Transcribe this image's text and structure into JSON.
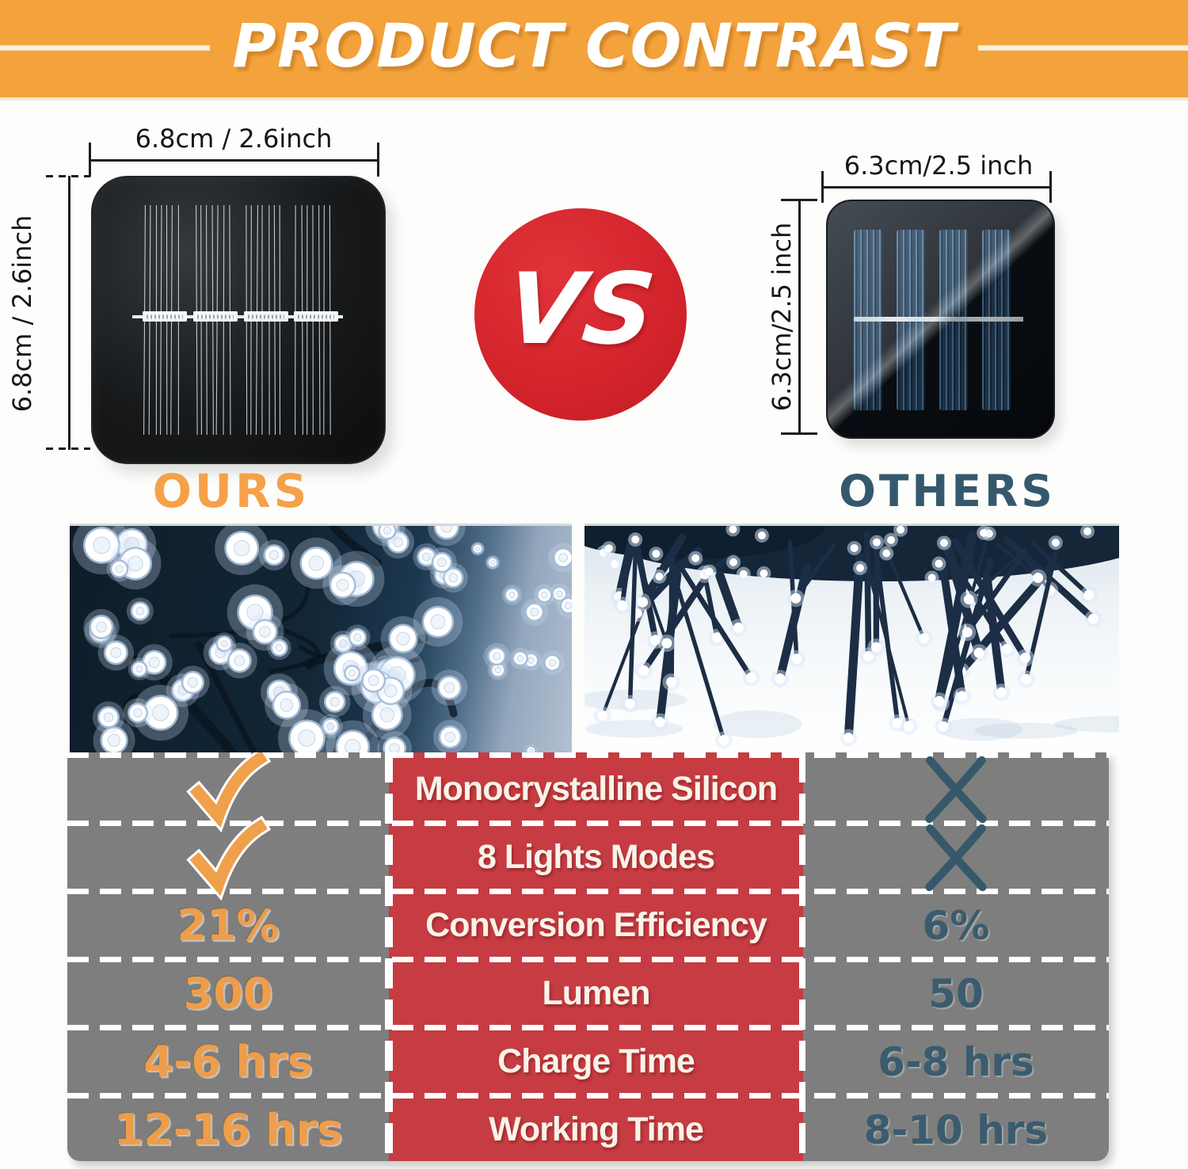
{
  "header": {
    "title": "PRODUCT CONTRAST",
    "banner_color": "#F4A23C"
  },
  "ours": {
    "name": "OURS",
    "top_dimension": "6.8cm / 2.6inch",
    "side_dimension": "6.8cm / 2.6inch",
    "label_color": "#F5A149"
  },
  "others": {
    "name": "OTHERS",
    "top_dimension": "6.3cm/2.5 inch",
    "side_dimension": "6.3cm/2.5 inch",
    "label_color": "#34596C"
  },
  "versus": {
    "label": "VS",
    "circle_color": "#D2232B"
  },
  "comparison_table": {
    "columns": [
      "ours",
      "feature",
      "others"
    ],
    "rows": [
      {
        "ours": "check",
        "feature": "Monocrystalline Silicon",
        "others": "cross"
      },
      {
        "ours": "check",
        "feature": "8 Lights Modes",
        "others": "cross"
      },
      {
        "ours": "21%",
        "feature": "Conversion Efficiency",
        "others": "6%"
      },
      {
        "ours": "300",
        "feature": "Lumen",
        "others": "50"
      },
      {
        "ours": "4-6 hrs",
        "feature": "Charge Time",
        "others": "6-8 hrs"
      },
      {
        "ours": "12-16 hrs",
        "feature": "Working Time",
        "others": "8-10 hrs"
      }
    ],
    "colors": {
      "ours_column_bg": "#7E7E7E",
      "feature_column_bg": "#C63C42",
      "others_column_bg": "#7E7E7E",
      "ours_value_color": "#EE9D4B",
      "others_value_color": "#3A5C6E",
      "feature_text_color": "#F8F3E9"
    }
  }
}
